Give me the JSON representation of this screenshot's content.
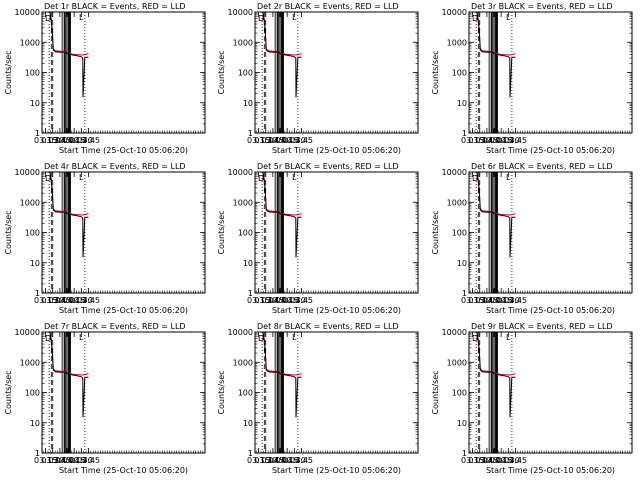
{
  "chart_data": {
    "type": "line",
    "layout": "3x3 grid",
    "colors": {
      "events": "#000000",
      "lld": "#dd0000"
    },
    "common": {
      "xlabel": "Start Time (25-Oct-10 05:06:20)",
      "ylabel": "Counts/sec",
      "yscale": "log",
      "ylim": [
        1,
        10000
      ],
      "xlim_hours": [
        3.125,
        8.825
      ],
      "yticks": [
        1,
        10,
        100,
        1000,
        10000
      ],
      "ytick_labels": [
        "1",
        "10",
        "100",
        "1000",
        "10000"
      ],
      "xticks_hours": [
        3.25,
        3.5,
        3.75,
        4.0,
        4.25,
        4.5,
        4.75
      ],
      "xtick_labels": [
        "03:15",
        "03:30",
        "03:45",
        "04:00",
        "04:15",
        "04:30",
        "04:45"
      ],
      "legend_glyph": "D",
      "flag_glyph": "L"
    },
    "panels": [
      {
        "title": "Det 1r BLACK = Events, RED = LLD"
      },
      {
        "title": "Det 2r BLACK = Events, RED = LLD"
      },
      {
        "title": "Det 3r BLACK = Events, RED = LLD"
      },
      {
        "title": "Det 4r BLACK = Events, RED = LLD"
      },
      {
        "title": "Det 5r BLACK = Events, RED = LLD"
      },
      {
        "title": "Det 6r BLACK = Events, RED = LLD"
      },
      {
        "title": "Det 7r BLACK = Events, RED = LLD"
      },
      {
        "title": "Det 8r BLACK = Events, RED = LLD"
      },
      {
        "title": "Det 9r BLACK = Events, RED = LLD"
      }
    ],
    "series": [
      {
        "name": "Events",
        "x_hours": [
          3.15,
          3.22,
          3.33,
          3.4,
          3.46,
          3.5,
          3.52,
          3.6,
          3.8,
          3.95,
          4.0,
          4.1,
          4.2,
          4.35,
          4.5,
          4.55,
          4.56,
          4.62,
          4.75
        ],
        "y": [
          10000,
          10000,
          10000,
          10000,
          4000,
          1200,
          550,
          480,
          470,
          480,
          430,
          400,
          380,
          360,
          330,
          300,
          15,
          320,
          320
        ]
      },
      {
        "name": "LLD",
        "x_hours": [
          3.15,
          3.22,
          3.33,
          3.4,
          3.46,
          3.5,
          3.52,
          3.6,
          3.8,
          3.95,
          4.0,
          4.1,
          4.2,
          4.35,
          4.5,
          4.62,
          4.75
        ],
        "y": [
          10000,
          10000,
          10000,
          10000,
          5000,
          1400,
          600,
          520,
          500,
          510,
          460,
          430,
          400,
          390,
          380,
          390,
          420
        ]
      }
    ],
    "vertical_lines": {
      "dotted_hours": [
        3.375,
        4.625
      ],
      "dashed_hours": [
        3.45,
        3.5
      ],
      "solid_hours": [
        3.83,
        3.9,
        3.93,
        3.97,
        4.03,
        4.05,
        4.08,
        4.1,
        4.12
      ]
    }
  }
}
